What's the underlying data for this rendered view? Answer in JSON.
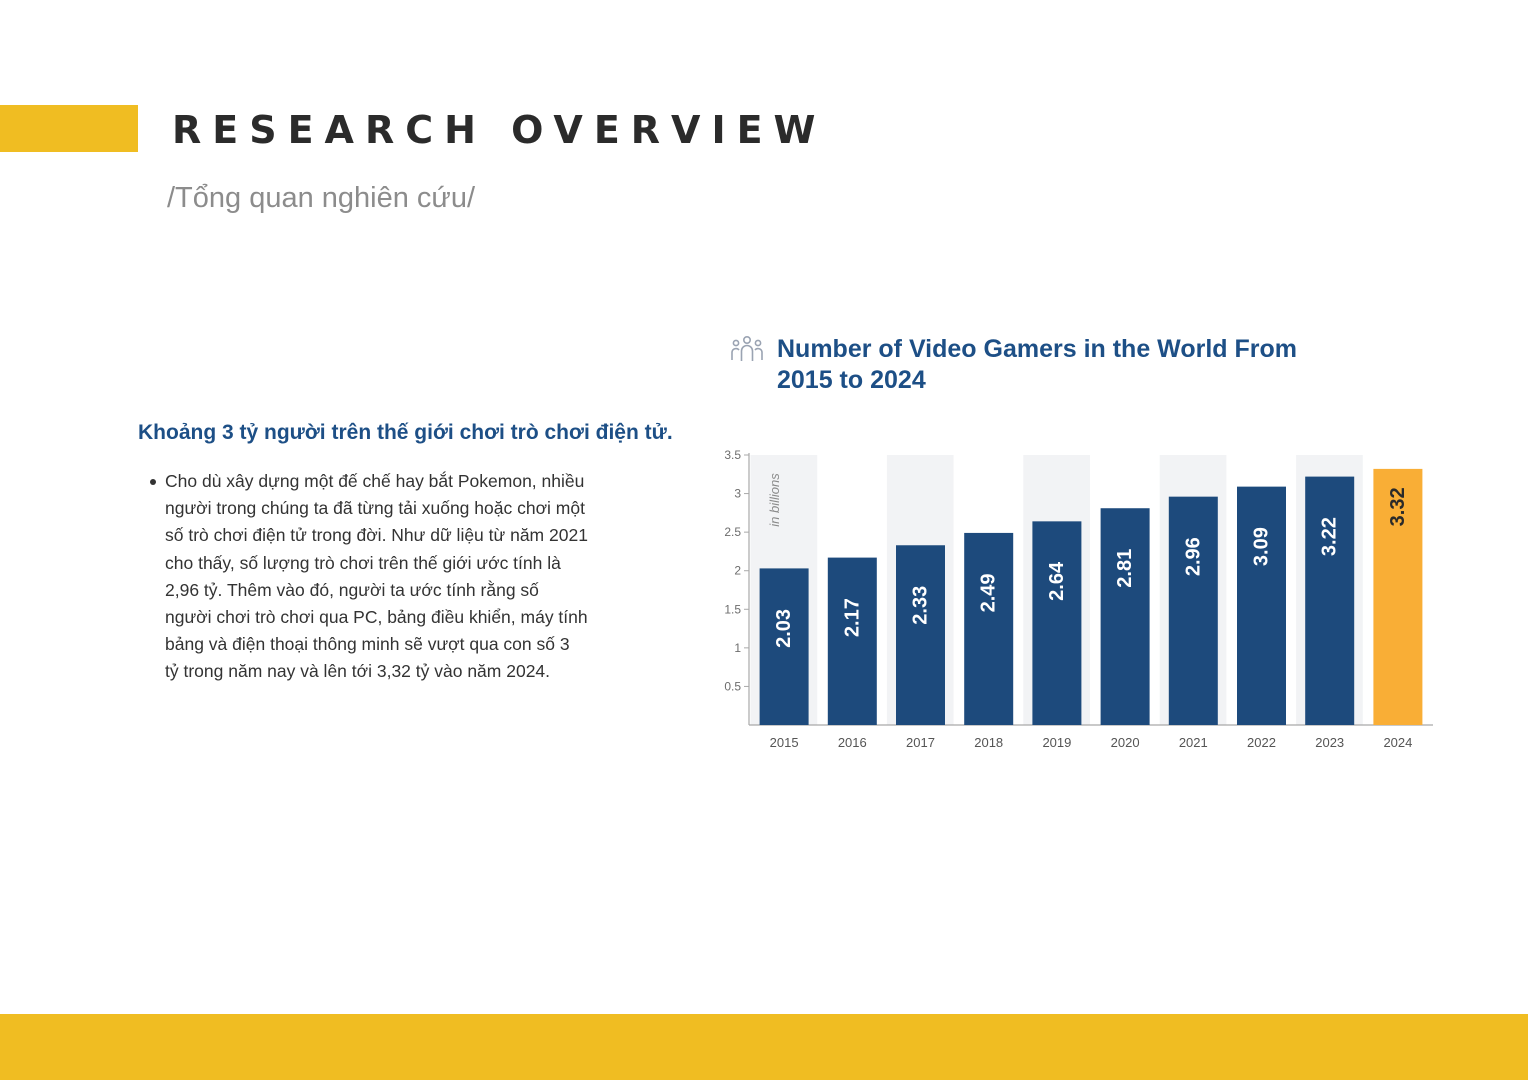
{
  "theme": {
    "accent_yellow": "#f0bd22",
    "heading_blue": "#1d4f86",
    "bar_blue": "#1d4a7c",
    "highlight_orange": "#f9ae36",
    "column_band_gray": "#f2f3f5"
  },
  "header": {
    "title": "RESEARCH OVERVIEW",
    "subtitle": "/Tổng quan nghiên cứu/"
  },
  "content": {
    "heading": "Khoảng 3 tỷ người trên thế giới chơi trò chơi điện tử.",
    "bullets": [
      "Cho dù xây dựng một đế chế hay bắt Pokemon, nhiều người trong chúng ta đã từng tải xuống hoặc chơi một số trò chơi điện tử trong đời. Như dữ liệu từ năm 2021 cho thấy, số lượng trò chơi trên thế giới ước tính là 2,96 tỷ. Thêm vào đó, người ta ước tính rằng số người chơi trò chơi qua PC, bảng điều khiển, máy tính bảng và điện thoại thông minh sẽ vượt qua con số 3 tỷ trong năm nay và lên tới 3,32 tỷ vào năm 2024."
    ]
  },
  "chart_header": {
    "icon": "people-group-icon",
    "title": "Number of Video Gamers in the World From 2015 to 2024"
  },
  "chart_data": {
    "type": "bar",
    "title": "Number of Video Gamers in the World From 2015 to 2024",
    "categories": [
      "2015",
      "2016",
      "2017",
      "2018",
      "2019",
      "2020",
      "2021",
      "2022",
      "2023",
      "2024"
    ],
    "values": [
      2.03,
      2.17,
      2.33,
      2.49,
      2.64,
      2.81,
      2.96,
      3.09,
      3.22,
      3.32
    ],
    "value_labels": [
      "2.03",
      "2.17",
      "2.33",
      "2.49",
      "2.64",
      "2.81",
      "2.96",
      "3.09",
      "3.22",
      "3.32"
    ],
    "highlighted_category": "2024",
    "unit_note": "in billions",
    "y_ticks": [
      0.5,
      1,
      1.5,
      2,
      2.5,
      3,
      3.5
    ],
    "y_tick_labels": [
      "0.5",
      "1",
      "1.5",
      "2",
      "2.5",
      "3",
      "3.5"
    ],
    "ylim": [
      0,
      3.5
    ],
    "xlabel": "",
    "ylabel": "",
    "grid": false,
    "legend": "none"
  }
}
